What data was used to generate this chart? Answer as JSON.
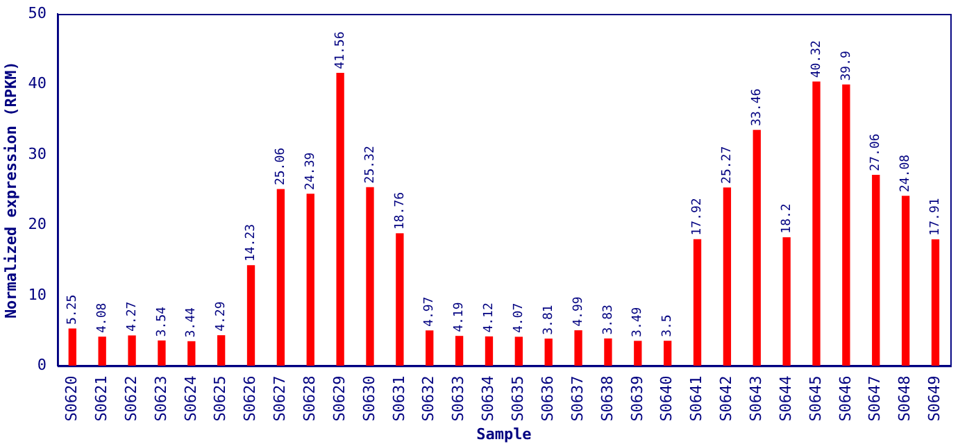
{
  "chart_data": {
    "type": "bar",
    "xlabel": "Sample",
    "ylabel": "Normalized expression (RPKM)",
    "categories": [
      "S0620",
      "S0621",
      "S0622",
      "S0623",
      "S0624",
      "S0625",
      "S0626",
      "S0627",
      "S0628",
      "S0629",
      "S0630",
      "S0631",
      "S0632",
      "S0633",
      "S0634",
      "S0635",
      "S0636",
      "S0637",
      "S0638",
      "S0639",
      "S0640",
      "S0641",
      "S0642",
      "S0643",
      "S0644",
      "S0645",
      "S0646",
      "S0647",
      "S0648",
      "S0649"
    ],
    "values": [
      5.25,
      4.08,
      4.27,
      3.54,
      3.44,
      4.29,
      14.23,
      25.06,
      24.39,
      41.56,
      25.32,
      18.76,
      4.97,
      4.19,
      4.12,
      4.07,
      3.81,
      4.99,
      3.83,
      3.49,
      3.5,
      17.92,
      25.27,
      33.46,
      18.2,
      40.32,
      39.9,
      27.06,
      24.08,
      17.91
    ],
    "color": "#ff0000",
    "ylim": [
      0,
      50
    ],
    "yticks": [
      0,
      10,
      20,
      30,
      40,
      50
    ],
    "grid": false,
    "legend": false,
    "data_labels": true
  }
}
